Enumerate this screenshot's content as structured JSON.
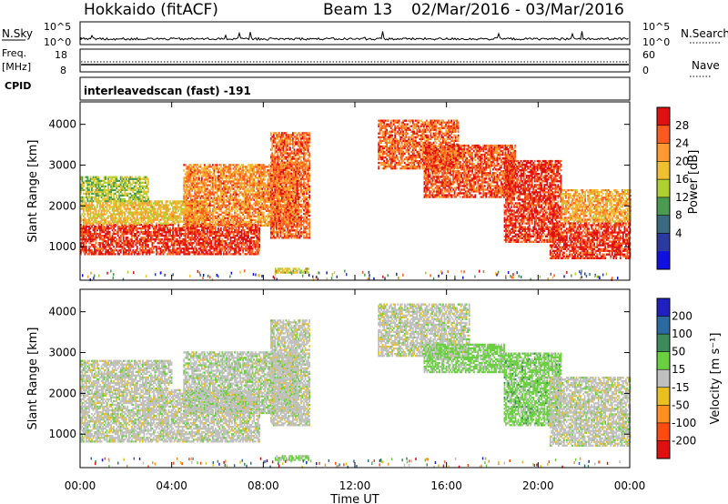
{
  "header": {
    "radar": "Hokkaido (fitACF)",
    "beam": "Beam 13",
    "date_range": "02/Mar/2016 - 03/Mar/2016"
  },
  "left_labels": {
    "nsky": "N.Sky",
    "freq": "Freq.",
    "mhz": "[MHz]",
    "cpid": "CPID"
  },
  "right_labels": {
    "nsearch": "N.Search",
    "nave": "Nave"
  },
  "noise_axis": {
    "left_top": "10^5",
    "left_bottom": "10^0",
    "right_top": "10^5",
    "right_bottom": "10^0"
  },
  "freq_axis": {
    "left_top": "18",
    "left_bottom": "8",
    "right_top": "60",
    "right_bottom": "0"
  },
  "cpid_text": "interleavedscan (fast) -191",
  "colorbars": {
    "power": {
      "label": "Power [dB]",
      "ticks": [
        "28",
        "24",
        "20",
        "16",
        "12",
        "8",
        "4"
      ],
      "colors": [
        "#e01010",
        "#ff5a1e",
        "#ff9a30",
        "#f0c030",
        "#b0d030",
        "#4a9a50",
        "#3a6a80",
        "#2a3aa0",
        "#1010e0"
      ]
    },
    "velocity": {
      "label": "Velocity [m s⁻¹]",
      "ticks": [
        "200",
        "100",
        "50",
        "15",
        "-15",
        "-50",
        "-100",
        "-200"
      ],
      "colors": [
        "#2020c0",
        "#2a6aa0",
        "#3a8a5a",
        "#6ad040",
        "#c0c0c0",
        "#e8c020",
        "#ff9020",
        "#ff4a10",
        "#e01010"
      ]
    }
  },
  "chart_data": {
    "type": "heatmap",
    "x_axis": {
      "label": "Time UT",
      "ticks": [
        "00:00",
        "04:00",
        "08:00",
        "12:00",
        "16:00",
        "20:00",
        "00:00"
      ],
      "range_hours": [
        0,
        24
      ]
    },
    "y_axis": {
      "label": "Slant Range [km]",
      "ticks": [
        1000,
        2000,
        3000,
        4000
      ],
      "range_km": [
        180,
        4550
      ]
    },
    "panels": [
      {
        "name": "Power",
        "unit": "dB",
        "scale": [
          0,
          32
        ],
        "regions": [
          {
            "t": [
              0.0,
              7.8
            ],
            "r": [
              800,
              1550
            ],
            "v": 29
          },
          {
            "t": [
              0.0,
              5.5
            ],
            "r": [
              1550,
              2100
            ],
            "v": 20
          },
          {
            "t": [
              0.0,
              3.0
            ],
            "r": [
              2100,
              2700
            ],
            "v": 16
          },
          {
            "t": [
              4.5,
              9.5
            ],
            "r": [
              1500,
              3000
            ],
            "v": 24
          },
          {
            "t": [
              8.3,
              10.0
            ],
            "r": [
              1200,
              3800
            ],
            "v": 26
          },
          {
            "t": [
              8.5,
              10.0
            ],
            "r": [
              350,
              470
            ],
            "v": 18
          },
          {
            "t": [
              13.0,
              16.5
            ],
            "r": [
              2900,
              4100
            ],
            "v": 26
          },
          {
            "t": [
              15.0,
              19.0
            ],
            "r": [
              2200,
              3500
            ],
            "v": 27
          },
          {
            "t": [
              18.5,
              21.0
            ],
            "r": [
              1100,
              3100
            ],
            "v": 29
          },
          {
            "t": [
              20.5,
              24.0
            ],
            "r": [
              700,
              1600
            ],
            "v": 29
          },
          {
            "t": [
              21.0,
              24.0
            ],
            "r": [
              1600,
              2400
            ],
            "v": 22
          }
        ]
      },
      {
        "name": "Velocity",
        "unit": "m s^-1",
        "scale": [
          -200,
          200
        ],
        "regions": [
          {
            "t": [
              0.0,
              7.8
            ],
            "r": [
              800,
              2100
            ],
            "v": 0
          },
          {
            "t": [
              0.0,
              4.0
            ],
            "r": [
              2100,
              2800
            ],
            "v": 0
          },
          {
            "t": [
              4.5,
              9.5
            ],
            "r": [
              1500,
              3000
            ],
            "v": 5
          },
          {
            "t": [
              8.3,
              10.0
            ],
            "r": [
              1200,
              3800
            ],
            "v": 0
          },
          {
            "t": [
              8.5,
              10.0
            ],
            "r": [
              350,
              470
            ],
            "v": 30
          },
          {
            "t": [
              13.0,
              17.0
            ],
            "r": [
              2900,
              4200
            ],
            "v": 0
          },
          {
            "t": [
              15.0,
              18.5
            ],
            "r": [
              2500,
              3200
            ],
            "v": 35
          },
          {
            "t": [
              18.5,
              21.0
            ],
            "r": [
              1200,
              3000
            ],
            "v": 40
          },
          {
            "t": [
              20.5,
              24.0
            ],
            "r": [
              700,
              2400
            ],
            "v": 0
          }
        ]
      }
    ],
    "colorbar_ranges": {
      "power": [
        0,
        32
      ],
      "velocity": [
        -200,
        200
      ]
    }
  }
}
